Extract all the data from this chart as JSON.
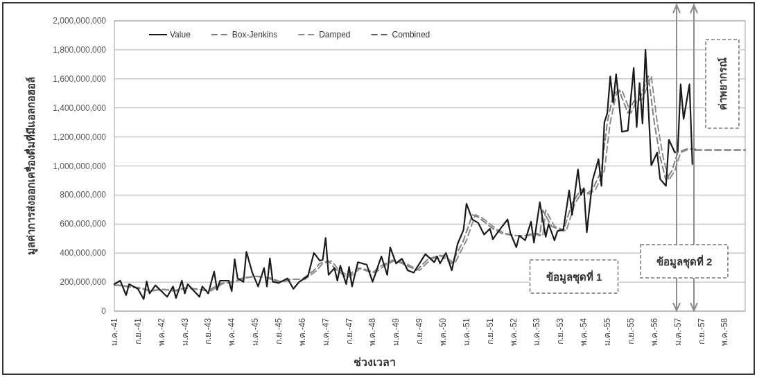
{
  "chart_data": {
    "type": "line",
    "xlabel": "ช่วงเวลา",
    "ylabel": "มูลค่าการส่งออกเครื่องดื่มที่มีแอลกอฮอล์",
    "categories": [
      "ม.ค.-41",
      null,
      null,
      null,
      null,
      null,
      null,
      null,
      "ก.ย.-41",
      null,
      null,
      null,
      null,
      null,
      null,
      null,
      "พ.ค.-42",
      null,
      null,
      null,
      null,
      null,
      null,
      null,
      "ม.ค.-43",
      null,
      null,
      null,
      null,
      null,
      null,
      null,
      "ก.ย.-43",
      null,
      null,
      null,
      null,
      null,
      null,
      null,
      "พ.ค.-44",
      null,
      null,
      null,
      null,
      null,
      null,
      null,
      "ม.ค.-45",
      null,
      null,
      null,
      null,
      null,
      null,
      null,
      "ก.ย.-45",
      null,
      null,
      null,
      null,
      null,
      null,
      null,
      "พ.ค.-46",
      null,
      null,
      null,
      null,
      null,
      null,
      null,
      "ม.ค.-47",
      null,
      null,
      null,
      null,
      null,
      null,
      null,
      "ก.ย.-47",
      null,
      null,
      null,
      null,
      null,
      null,
      null,
      "พ.ค.-48",
      null,
      null,
      null,
      null,
      null,
      null,
      null,
      "ม.ค.-49",
      null,
      null,
      null,
      null,
      null,
      null,
      null,
      "ก.ย.-49",
      null,
      null,
      null,
      null,
      null,
      null,
      null,
      "พ.ค.-50",
      null,
      null,
      null,
      null,
      null,
      null,
      null,
      "ม.ค.-51",
      null,
      null,
      null,
      null,
      null,
      null,
      null,
      "ก.ย.-51",
      null,
      null,
      null,
      null,
      null,
      null,
      null,
      "พ.ค.-52",
      null,
      null,
      null,
      null,
      null,
      null,
      null,
      "ม.ค.-53",
      null,
      null,
      null,
      null,
      null,
      null,
      null,
      "ก.ย.-53",
      null,
      null,
      null,
      null,
      null,
      null,
      null,
      "พ.ค.-54",
      null,
      null,
      null,
      null,
      null,
      null,
      null,
      "ม.ค.-55",
      null,
      null,
      null,
      null,
      null,
      null,
      null,
      "ก.ย.-55",
      null,
      null,
      null,
      null,
      null,
      null,
      null,
      "พ.ค.-56",
      null,
      null,
      null,
      null,
      null,
      null,
      null,
      "ม.ค.-57",
      null,
      null,
      null,
      null,
      null,
      null,
      null,
      "ก.ย.-57",
      null,
      null,
      null,
      null,
      null,
      null,
      null,
      "พ.ค.-58",
      null,
      null,
      null,
      null,
      null,
      null,
      null
    ],
    "ylim": [
      0,
      2000000000
    ],
    "yticks": [
      0,
      {
        "value": 200000000,
        "label": "200,000,000"
      },
      {
        "value": 400000000,
        "label": "400,000,000"
      },
      {
        "value": 600000000,
        "label": "600,000,000"
      },
      {
        "value": 800000000,
        "label": "800,000,000"
      },
      {
        "value": 1000000000,
        "label": "1,000,000,000"
      },
      {
        "value": 1200000000,
        "label": "1,200,000,000"
      },
      {
        "value": 1400000000,
        "label": "1,400,000,000"
      },
      {
        "value": 1600000000,
        "label": "1,600,000,000"
      },
      {
        "value": 1800000000,
        "label": "1,800,000,000"
      },
      {
        "value": 2000000000,
        "label": "2,000,000,000"
      }
    ],
    "grid": "y",
    "legend": "top left",
    "series": [
      {
        "name": "Value",
        "color": "#1a1a1a",
        "line_style": "solid",
        "values": [
          186000000.0,
          198000000.0,
          210000000.0,
          160000000.0,
          110000000.0,
          186000000.0,
          175000000.0,
          165000000.0,
          154000000.0,
          118000000.0,
          83000000.0,
          205000000.0,
          122000000.0,
          150000000.0,
          178000000.0,
          158000000.0,
          138000000.0,
          118000000.0,
          99000000.0,
          135000000.0,
          170000000.0,
          91000000.0,
          150000000.0,
          210000000.0,
          122000000.0,
          186000000.0,
          164000000.0,
          142000000.0,
          121000000.0,
          99000000.0,
          170000000.0,
          146000000.0,
          122000000.0,
          198000000.0,
          273000000.0,
          146000000.0,
          210000000.0,
          210000000.0,
          210000000.0,
          210000000.0,
          138000000.0,
          357000000.0,
          226000000.0,
          214000000.0,
          202000000.0,
          409000000.0,
          337000000.0,
          265000000.0,
          218000000.0,
          170000000.0,
          234000000.0,
          297000000.0,
          170000000.0,
          364000000.0,
          202000000.0,
          198000000.0,
          194000000.0,
          205000000.0,
          215000000.0,
          226000000.0,
          190000000.0,
          154000000.0,
          178000000.0,
          202000000.0,
          215000000.0,
          229000000.0,
          242000000.0,
          322000000.0,
          401000000.0,
          375000000.0,
          348000000.0,
          353000000.0,
          504000000.0,
          250000000.0,
          274000000.0,
          297000000.0,
          210000000.0,
          313000000.0,
          250000000.0,
          186000000.0,
          305000000.0,
          170000000.0,
          254000000.0,
          337000000.0,
          332000000.0,
          326000000.0,
          321000000.0,
          262000000.0,
          202000000.0,
          260000000.0,
          319000000.0,
          377000000.0,
          314000000.0,
          250000000.0,
          440000000.0,
          385000000.0,
          329000000.0,
          345000000.0,
          361000000.0,
          321000000.0,
          281000000.0,
          273000000.0,
          265000000.0,
          297000000.0,
          329000000.0,
          361000000.0,
          393000000.0,
          374000000.0,
          356000000.0,
          337000000.0,
          377000000.0,
          329000000.0,
          365000000.0,
          401000000.0,
          341000000.0,
          281000000.0,
          373000000.0,
          464000000.0,
          512000000.0,
          560000000.0,
          740000000.0,
          686000000.0,
          632000000.0,
          620000000.0,
          608000000.0,
          568000000.0,
          528000000.0,
          548000000.0,
          568000000.0,
          496000000.0,
          524000000.0,
          552000000.0,
          579000000.0,
          605000000.0,
          632000000.0,
          536000000.0,
          488000000.0,
          440000000.0,
          520000000.0,
          504000000.0,
          488000000.0,
          552000000.0,
          616000000.0,
          472000000.0,
          611000000.0,
          750000000.0,
          631000000.0,
          512000000.0,
          600000000.0,
          544000000.0,
          488000000.0,
          552000000.0,
          556000000.0,
          560000000.0,
          696000000.0,
          831000000.0,
          664000000.0,
          820000000.0,
          976000000.0,
          799000000.0,
          847000000.0,
          544000000.0,
          724000000.0,
          903000000.0,
          975000000.0,
          1047000000.0,
          863000000.0,
          1300000000.0,
          1364000000.0,
          1616000000.0,
          1436000000.0,
          1632000000.0,
          1434000000.0,
          1236000000.0,
          1240000000.0,
          1244000000.0,
          1460000000.0,
          1675000000.0,
          1268000000.0,
          1571000000.0,
          1292000000.0,
          1800000000.0,
          1403000000.0,
          1005000000.0,
          1049000000.0,
          1093000000.0,
          910000000.0,
          887000000.0,
          863000000.0,
          1180000000.0,
          1137000000.0,
          1093000000.0,
          1101000000.0,
          1563000000.0,
          1324000000.0,
          1444000000.0,
          1563000000.0,
          1013000000.0,
          null,
          null,
          null,
          null,
          null,
          null,
          null,
          null,
          null,
          null,
          null,
          null,
          null,
          null,
          null,
          null,
          null,
          null
        ]
      },
      {
        "name": "Box-Jenkins",
        "color": "#7f7f7f",
        "line_style": "dashed",
        "values": [
          180000000.0,
          178000000.0,
          175000000.0,
          173000000.0,
          170000000.0,
          168000000.0,
          165000000.0,
          163000000.0,
          160000000.0,
          155000000.0,
          150000000.0,
          145000000.0,
          140000000.0,
          143000000.0,
          145000000.0,
          148000000.0,
          150000000.0,
          148000000.0,
          145000000.0,
          143000000.0,
          140000000.0,
          145000000.0,
          150000000.0,
          155000000.0,
          160000000.0,
          158000000.0,
          155000000.0,
          153000000.0,
          150000000.0,
          148000000.0,
          145000000.0,
          143000000.0,
          140000000.0,
          153000000.0,
          165000000.0,
          178000000.0,
          190000000.0,
          193000000.0,
          195000000.0,
          198000000.0,
          200000000.0,
          208000000.0,
          215000000.0,
          223000000.0,
          230000000.0,
          233000000.0,
          235000000.0,
          238000000.0,
          240000000.0,
          238000000.0,
          235000000.0,
          233000000.0,
          230000000.0,
          223000000.0,
          215000000.0,
          208000000.0,
          200000000.0,
          205000000.0,
          210000000.0,
          215000000.0,
          220000000.0,
          220000000.0,
          220000000.0,
          220000000.0,
          220000000.0,
          235000000.0,
          250000000.0,
          265000000.0,
          280000000.0,
          305000000.0,
          330000000.0,
          335000000.0,
          340000000.0,
          345000000.0,
          321000000.0,
          297000000.0,
          281000000.0,
          266000000.0,
          250000000.0,
          234000000.0,
          250000000.0,
          266000000.0,
          281000000.0,
          297000000.0,
          291000000.0,
          284000000.0,
          278000000.0,
          271000000.0,
          265000000.0,
          281000000.0,
          297000000.0,
          313000000.0,
          323000000.0,
          333000000.0,
          343000000.0,
          353000000.0,
          345000000.0,
          337000000.0,
          329000000.0,
          321000000.0,
          311000000.0,
          301000000.0,
          291000000.0,
          281000000.0,
          301000000.0,
          321000000.0,
          341000000.0,
          361000000.0,
          367000000.0,
          373000000.0,
          379000000.0,
          385000000.0,
          371000000.0,
          357000000.0,
          343000000.0,
          329000000.0,
          369000000.0,
          409000000.0,
          448000000.0,
          488000000.0,
          547000000.0,
          605000000.0,
          664000000.0,
          656000000.0,
          648000000.0,
          632000000.0,
          616000000.0,
          600000000.0,
          584000000.0,
          568000000.0,
          557000000.0,
          547000000.0,
          536000000.0,
          532000000.0,
          528000000.0,
          524000000.0,
          520000000.0,
          520000000.0,
          520000000.0,
          520000000.0,
          520000000.0,
          525000000.0,
          531000000.0,
          536000000.0,
          528000000.0,
          520000000.0,
          696000000.0,
          659000000.0,
          621000000.0,
          584000000.0,
          576000000.0,
          568000000.0,
          560000000.0,
          552000000.0,
          616000000.0,
          680000000.0,
          743000000.0,
          775000000.0,
          807000000.0,
          839000000.0,
          823000000.0,
          807000000.0,
          823000000.0,
          839000000.0,
          882000000.0,
          924000000.0,
          967000000.0,
          1134000000.0,
          1300000000.0,
          1396000000.0,
          1491000000.0,
          1507000000.0,
          1523000000.0,
          1470000000.0,
          1417000000.0,
          1364000000.0,
          1404000000.0,
          1444000000.0,
          1452000000.0,
          1460000000.0,
          1513000000.0,
          1566000000.0,
          1619000000.0,
          1460000000.0,
          1300000000.0,
          1181000000.0,
          1061000000.0,
          982000000.0,
          903000000.0,
          935000000.0,
          967000000.0,
          1030000000.0,
          1093000000.0,
          1101000000.0,
          1109000000.0,
          1117000000.0,
          1117000000.0,
          1117000000.0,
          1117000000.0,
          null,
          null,
          null,
          null,
          null,
          null,
          null,
          null,
          null,
          null,
          null,
          null,
          null,
          null,
          null,
          null,
          null
        ]
      },
      {
        "name": "Damped",
        "color": "#8c8c8c",
        "line_style": "dashed",
        "values": [
          175000000.0,
          180000000.0,
          178000000.0,
          175000000.0,
          173000000.0,
          170000000.0,
          168000000.0,
          165000000.0,
          163000000.0,
          160000000.0,
          155000000.0,
          150000000.0,
          145000000.0,
          140000000.0,
          143000000.0,
          145000000.0,
          148000000.0,
          150000000.0,
          148000000.0,
          145000000.0,
          143000000.0,
          140000000.0,
          145000000.0,
          150000000.0,
          155000000.0,
          160000000.0,
          158000000.0,
          155000000.0,
          153000000.0,
          150000000.0,
          148000000.0,
          145000000.0,
          143000000.0,
          140000000.0,
          153000000.0,
          165000000.0,
          178000000.0,
          190000000.0,
          193000000.0,
          195000000.0,
          198000000.0,
          200000000.0,
          208000000.0,
          215000000.0,
          223000000.0,
          230000000.0,
          233000000.0,
          235000000.0,
          238000000.0,
          240000000.0,
          238000000.0,
          235000000.0,
          233000000.0,
          230000000.0,
          223000000.0,
          215000000.0,
          208000000.0,
          200000000.0,
          205000000.0,
          210000000.0,
          215000000.0,
          220000000.0,
          220000000.0,
          220000000.0,
          220000000.0,
          220000000.0,
          235000000.0,
          250000000.0,
          265000000.0,
          280000000.0,
          305000000.0,
          330000000.0,
          335000000.0,
          340000000.0,
          345000000.0,
          321000000.0,
          297000000.0,
          281000000.0,
          266000000.0,
          250000000.0,
          234000000.0,
          250000000.0,
          266000000.0,
          281000000.0,
          297000000.0,
          291000000.0,
          284000000.0,
          278000000.0,
          271000000.0,
          265000000.0,
          281000000.0,
          297000000.0,
          313000000.0,
          323000000.0,
          333000000.0,
          343000000.0,
          353000000.0,
          345000000.0,
          337000000.0,
          329000000.0,
          321000000.0,
          311000000.0,
          301000000.0,
          291000000.0,
          281000000.0,
          301000000.0,
          321000000.0,
          341000000.0,
          361000000.0,
          367000000.0,
          373000000.0,
          379000000.0,
          385000000.0,
          371000000.0,
          357000000.0,
          343000000.0,
          329000000.0,
          369000000.0,
          409000000.0,
          448000000.0,
          488000000.0,
          547000000.0,
          605000000.0,
          664000000.0,
          656000000.0,
          648000000.0,
          632000000.0,
          616000000.0,
          600000000.0,
          584000000.0,
          568000000.0,
          557000000.0,
          547000000.0,
          536000000.0,
          532000000.0,
          528000000.0,
          524000000.0,
          520000000.0,
          520000000.0,
          520000000.0,
          520000000.0,
          520000000.0,
          525000000.0,
          531000000.0,
          536000000.0,
          528000000.0,
          520000000.0,
          696000000.0,
          659000000.0,
          621000000.0,
          584000000.0,
          576000000.0,
          568000000.0,
          560000000.0,
          552000000.0,
          616000000.0,
          680000000.0,
          743000000.0,
          775000000.0,
          807000000.0,
          839000000.0,
          823000000.0,
          807000000.0,
          823000000.0,
          839000000.0,
          882000000.0,
          924000000.0,
          967000000.0,
          1134000000.0,
          1300000000.0,
          1396000000.0,
          1491000000.0,
          1507000000.0,
          1523000000.0,
          1470000000.0,
          1417000000.0,
          1364000000.0,
          1404000000.0,
          1444000000.0,
          1452000000.0,
          1460000000.0,
          1513000000.0,
          1566000000.0,
          1619000000.0,
          1460000000.0,
          1300000000.0,
          1181000000.0,
          1061000000.0,
          982000000.0,
          903000000.0,
          935000000.0,
          967000000.0,
          1030000000.0,
          1093000000.0,
          1101000000.0,
          1109000000.0,
          1117000000.0,
          1117000000.0,
          1110000000.0,
          null,
          null,
          null,
          null,
          null,
          null,
          null,
          null,
          null,
          null,
          null,
          null,
          null,
          null,
          null,
          null,
          null
        ]
      },
      {
        "name": "Combined",
        "color": "#595959",
        "line_style": "dashed",
        "values": [
          null,
          null,
          null,
          null,
          null,
          null,
          null,
          null,
          null,
          null,
          null,
          null,
          null,
          null,
          null,
          null,
          null,
          null,
          null,
          null,
          null,
          null,
          null,
          null,
          null,
          null,
          null,
          null,
          null,
          null,
          null,
          null,
          null,
          null,
          null,
          null,
          null,
          null,
          null,
          null,
          null,
          null,
          null,
          null,
          null,
          null,
          null,
          null,
          null,
          null,
          null,
          null,
          null,
          null,
          null,
          null,
          null,
          null,
          null,
          null,
          null,
          null,
          null,
          null,
          null,
          null,
          null,
          null,
          null,
          null,
          null,
          null,
          null,
          null,
          null,
          null,
          null,
          null,
          null,
          null,
          null,
          null,
          null,
          null,
          null,
          null,
          null,
          null,
          null,
          null,
          null,
          null,
          null,
          null,
          null,
          null,
          null,
          null,
          null,
          null,
          null,
          null,
          null,
          null,
          null,
          null,
          null,
          null,
          null,
          null,
          null,
          null,
          null,
          null,
          null,
          null,
          null,
          null,
          null,
          null,
          null,
          null,
          null,
          null,
          null,
          null,
          null,
          null,
          null,
          null,
          null,
          null,
          null,
          null,
          null,
          null,
          null,
          null,
          null,
          null,
          null,
          null,
          null,
          null,
          null,
          null,
          null,
          null,
          null,
          null,
          null,
          null,
          null,
          null,
          null,
          null,
          null,
          null,
          null,
          null,
          null,
          null,
          null,
          null,
          null,
          null,
          null,
          null,
          null,
          null,
          null,
          null,
          null,
          null,
          null,
          null,
          null,
          null,
          null,
          null,
          null,
          null,
          null,
          null,
          null,
          null,
          null,
          null,
          null,
          null,
          null,
          null,
          null,
          null,
          null,
          null,
          null,
          null,
          1110000000.0,
          1110000000.0,
          1110000000.0,
          1110000000.0,
          1110000000.0,
          1110000000.0,
          1110000000.0,
          1110000000.0,
          1110000000.0,
          1110000000.0,
          1110000000.0,
          1110000000.0,
          1110000000.0,
          1110000000.0,
          1110000000.0,
          1110000000.0,
          1110000000.0,
          1110000000.0
        ]
      }
    ],
    "annotations": [
      "ข้อมูลชุดที่ 1",
      "ข้อมูลชุดที่ 2",
      "ค่าพยากรณ์"
    ]
  }
}
